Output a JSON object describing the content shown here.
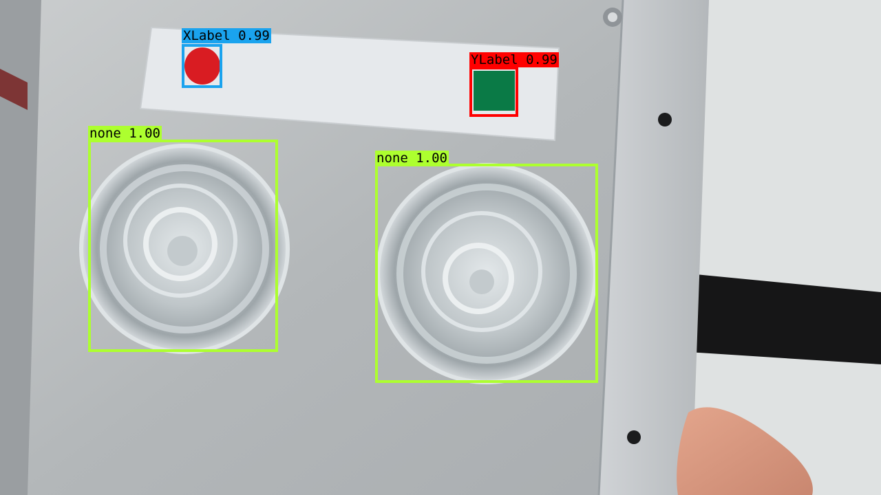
{
  "detections": [
    {
      "label": "XLabel",
      "score": "0.99",
      "color": "#1aa3ee"
    },
    {
      "label": "YLabel",
      "score": "0.99",
      "color": "#ff0000"
    },
    {
      "label": "none",
      "score": "1.00",
      "color": "#adff2f"
    },
    {
      "label": "none",
      "score": "1.00",
      "color": "#adff2f"
    }
  ],
  "markers": {
    "x_marker_color": "#d91c22",
    "y_marker_color": "#0a7a46"
  }
}
